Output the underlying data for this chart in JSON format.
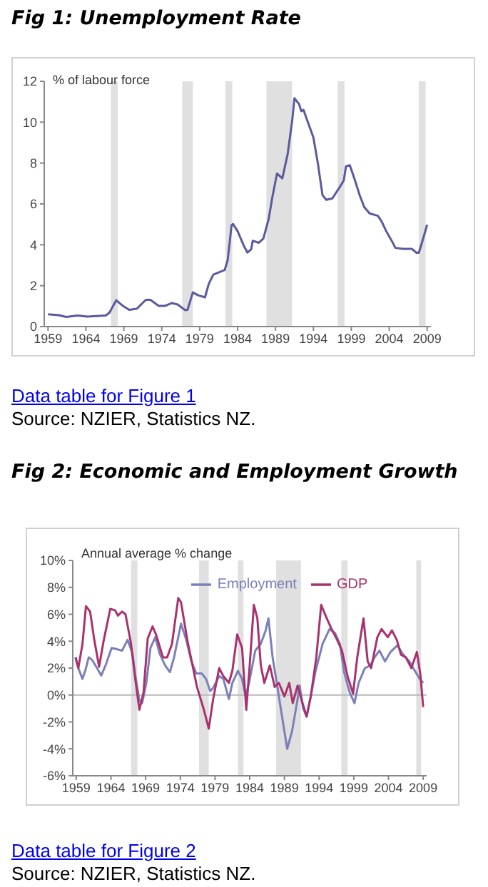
{
  "chart_data": [
    {
      "type": "line",
      "title": "Fig 1: Unemployment Rate",
      "ylabel": "% of labour force",
      "x": [
        1959.0,
        1960.4,
        1961.4,
        1962.9,
        1964.2,
        1966.6,
        1967.1,
        1968.0,
        1968.8,
        1969.7,
        1970.7,
        1971.9,
        1972.5,
        1973.6,
        1974.4,
        1975.3,
        1976.1,
        1977.1,
        1977.4,
        1978.1,
        1978.8,
        1979.7,
        1980.2,
        1980.8,
        1981.5,
        1982.3,
        1982.7,
        1983.2,
        1983.4,
        1984.0,
        1984.8,
        1985.3,
        1985.8,
        1986.0,
        1986.8,
        1987.4,
        1988.1,
        1988.6,
        1989.2,
        1989.9,
        1990.6,
        1991.2,
        1991.5,
        1992.1,
        1992.4,
        1992.7,
        1993.2,
        1994.0,
        1994.6,
        1995.2,
        1995.7,
        1996.5,
        1997.4,
        1998.0,
        1998.3,
        1998.8,
        1999.4,
        2000.1,
        2000.7,
        2001.4,
        2002.5,
        2003.0,
        2003.6,
        2004.5,
        2004.8,
        2005.8,
        2007.0,
        2007.6,
        2007.9,
        2008.3,
        2009.0
      ],
      "series": [
        {
          "color": "#5a5a9e",
          "values": [
            0.6,
            0.56,
            0.47,
            0.54,
            0.49,
            0.54,
            0.68,
            1.29,
            1.03,
            0.82,
            0.87,
            1.31,
            1.31,
            1.01,
            1.01,
            1.15,
            1.08,
            0.8,
            0.82,
            1.67,
            1.53,
            1.43,
            2.09,
            2.54,
            2.65,
            2.77,
            3.26,
            4.95,
            5.02,
            4.67,
            3.97,
            3.62,
            3.78,
            4.2,
            4.1,
            4.3,
            5.26,
            6.36,
            7.49,
            7.25,
            8.43,
            10.07,
            11.17,
            10.89,
            10.54,
            10.6,
            10.07,
            9.25,
            7.96,
            6.43,
            6.2,
            6.27,
            6.78,
            7.14,
            7.84,
            7.89,
            7.25,
            6.43,
            5.85,
            5.54,
            5.42,
            5.14,
            4.67,
            4.08,
            3.85,
            3.8,
            3.8,
            3.61,
            3.61,
            4.08,
            4.98
          ]
        }
      ],
      "xlim": [
        1958.5,
        2009.5
      ],
      "xticks": [
        1959,
        1964,
        1969,
        1974,
        1979,
        1984,
        1989,
        1994,
        1999,
        2004,
        2009
      ],
      "ylim": [
        0,
        12
      ],
      "yticks": [
        0,
        2,
        4,
        6,
        8,
        10,
        12
      ],
      "bands": [
        {
          "axis": "x",
          "from": 1967.3,
          "to": 1968.2,
          "color": "#e0e0e0"
        },
        {
          "axis": "x",
          "from": 1976.7,
          "to": 1978.1,
          "color": "#e0e0e0"
        },
        {
          "axis": "x",
          "from": 1982.4,
          "to": 1983.3,
          "color": "#e0e0e0"
        },
        {
          "axis": "x",
          "from": 1987.8,
          "to": 1991.2,
          "color": "#e0e0e0"
        },
        {
          "axis": "x",
          "from": 1997.2,
          "to": 1998.1,
          "color": "#e0e0e0"
        },
        {
          "axis": "x",
          "from": 2007.9,
          "to": 2008.8,
          "color": "#e0e0e0"
        }
      ],
      "annotations": [
        "Data table for Figure 1",
        "Source: NZIER, Statistics NZ."
      ]
    },
    {
      "type": "line",
      "title": "Fig 2: Economic and Employment Growth",
      "ylabel": "Annual average % change",
      "series": [
        {
          "name": "Employment",
          "color": "#7b80b8",
          "x": [
            1958.9,
            1959.3,
            1959.9,
            1960.3,
            1960.8,
            1961.3,
            1962.0,
            1962.6,
            1963.3,
            1964.1,
            1964.9,
            1965.6,
            1966.4,
            1967.1,
            1967.5,
            1968.1,
            1968.5,
            1969.1,
            1969.7,
            1970.4,
            1971.0,
            1971.8,
            1972.5,
            1973.1,
            1974.1,
            1974.8,
            1975.6,
            1976.3,
            1977.1,
            1977.7,
            1978.3,
            1978.7,
            1979.6,
            1980.2,
            1981.0,
            1981.5,
            1982.3,
            1982.9,
            1983.4,
            1983.9,
            1984.8,
            1985.6,
            1986.3,
            1986.7,
            1987.3,
            1987.9,
            1988.6,
            1989.4,
            1990.1,
            1990.9,
            1991.2,
            1991.7,
            1992.2,
            1992.8,
            1993.5,
            1994.5,
            1995.5,
            1996.3,
            1997.0,
            1997.6,
            1998.4,
            1999.1,
            1999.7,
            2000.6,
            2001.4,
            2002.0,
            2002.7,
            2003.5,
            2004.3,
            2005.3,
            2006.1,
            2007.0,
            2007.8,
            2008.5,
            2009.0
          ],
          "values": [
            2.8,
            2.0,
            1.2,
            1.8,
            2.8,
            2.6,
            2.0,
            1.45,
            2.3,
            3.5,
            3.4,
            3.3,
            4.1,
            3.1,
            1.5,
            -0.4,
            -0.6,
            0.9,
            3.5,
            4.3,
            3.1,
            2.2,
            1.7,
            2.8,
            5.3,
            4.2,
            2.5,
            1.6,
            1.6,
            1.2,
            0.3,
            0.5,
            1.4,
            1.2,
            -0.3,
            0.9,
            1.8,
            1.2,
            -0.1,
            0.9,
            3.3,
            3.8,
            4.8,
            5.7,
            2.8,
            0.9,
            -1.4,
            -4.0,
            -2.7,
            -0.3,
            0.7,
            -1.0,
            -1.6,
            -0.1,
            1.8,
            3.8,
            4.9,
            4.6,
            3.8,
            1.7,
            0.2,
            -0.6,
            0.9,
            2.0,
            2.2,
            2.8,
            3.3,
            2.5,
            3.2,
            3.7,
            3.0,
            2.5,
            1.8,
            1.2,
            0.9
          ]
        },
        {
          "name": "GDP",
          "color": "#a8326e",
          "x": [
            1958.9,
            1959.3,
            1959.9,
            1960.4,
            1961.0,
            1961.6,
            1962.3,
            1962.9,
            1963.9,
            1964.6,
            1965.0,
            1965.6,
            1966.1,
            1966.9,
            1967.5,
            1968.1,
            1968.7,
            1969.3,
            1970.0,
            1970.5,
            1971.5,
            1972.1,
            1972.8,
            1973.7,
            1974.1,
            1975.0,
            1975.6,
            1976.4,
            1977.4,
            1978.1,
            1978.7,
            1979.6,
            1980.2,
            1981.0,
            1981.5,
            1982.2,
            1982.9,
            1983.5,
            1984.0,
            1984.6,
            1985.1,
            1985.6,
            1986.1,
            1986.9,
            1987.6,
            1988.2,
            1989.0,
            1989.7,
            1990.2,
            1990.9,
            1991.5,
            1992.2,
            1992.8,
            1993.6,
            1994.3,
            1995.1,
            1995.8,
            1996.6,
            1997.3,
            1998.1,
            1998.9,
            1999.5,
            2000.4,
            2001.0,
            2001.5,
            2002.4,
            2003.0,
            2003.9,
            2004.5,
            2005.2,
            2005.8,
            2006.5,
            2007.3,
            2008.1,
            2008.6,
            2009.0
          ],
          "values": [
            2.8,
            2.0,
            3.8,
            6.6,
            6.2,
            4.1,
            2.1,
            3.9,
            6.4,
            6.3,
            5.9,
            6.2,
            6.0,
            3.8,
            1.2,
            -1.1,
            0.2,
            4.2,
            5.1,
            4.5,
            2.8,
            2.8,
            3.8,
            7.2,
            6.9,
            4.1,
            2.6,
            0.6,
            -1.1,
            -2.5,
            -0.4,
            2.0,
            1.4,
            0.9,
            1.8,
            4.5,
            3.5,
            -1.1,
            2.2,
            6.7,
            5.7,
            2.2,
            0.9,
            2.2,
            0.6,
            0.9,
            -0.1,
            0.9,
            -0.6,
            0.7,
            -0.4,
            -1.6,
            -0.1,
            2.8,
            6.7,
            5.7,
            4.9,
            4.1,
            3.3,
            1.4,
            0.1,
            2.8,
            5.7,
            2.5,
            2.0,
            4.3,
            4.9,
            4.3,
            4.8,
            4.1,
            3.0,
            2.8,
            2.0,
            3.2,
            1.5,
            -0.9
          ]
        }
      ],
      "xlim": [
        1958.5,
        2009.5
      ],
      "xticks": [
        1959,
        1964,
        1969,
        1974,
        1979,
        1984,
        1989,
        1994,
        1999,
        2004,
        2009
      ],
      "ylim": [
        -6,
        10
      ],
      "yticks": [
        {
          "value": -6,
          "label": "-6%"
        },
        {
          "value": -4,
          "label": "-4%"
        },
        {
          "value": -2,
          "label": "-2%"
        },
        {
          "value": 0,
          "label": "0%"
        },
        {
          "value": 2,
          "label": "2%"
        },
        {
          "value": 4,
          "label": "4%"
        },
        {
          "value": 6,
          "label": "6%"
        },
        {
          "value": 8,
          "label": "8%"
        },
        {
          "value": 10,
          "label": "10%"
        }
      ],
      "legend": "top",
      "ref_lines": [
        {
          "axis": "y",
          "value": 0,
          "color": "#b8b8b8"
        }
      ],
      "bands": [
        {
          "axis": "x",
          "from": 1966.9,
          "to": 1967.8,
          "color": "#e0e0e0"
        },
        {
          "axis": "x",
          "from": 1976.7,
          "to": 1978.1,
          "color": "#e0e0e0"
        },
        {
          "axis": "x",
          "from": 1982.3,
          "to": 1983.1,
          "color": "#e0e0e0"
        },
        {
          "axis": "x",
          "from": 1987.8,
          "to": 1991.4,
          "color": "#e0e0e0"
        },
        {
          "axis": "x",
          "from": 1997.2,
          "to": 1998.1,
          "color": "#e0e0e0"
        },
        {
          "axis": "x",
          "from": 2008.0,
          "to": 2008.7,
          "color": "#e0e0e0"
        }
      ],
      "annotations": [
        "Data table for Figure 2",
        "Source: NZIER, Statistics NZ."
      ]
    }
  ]
}
